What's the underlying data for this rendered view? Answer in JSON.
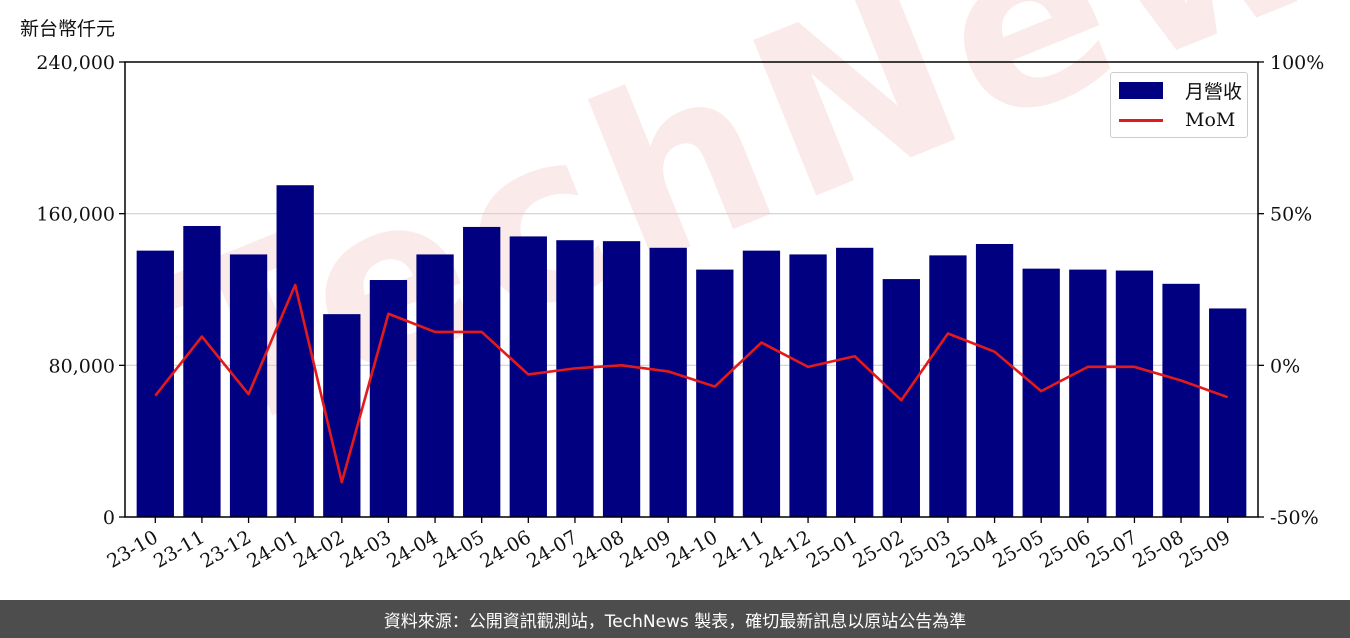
{
  "unit_label": "新台幣仟元",
  "footer_text": "資料來源：公開資訊觀測站，TechNews 製表，確切最新訊息以原站公告為準",
  "watermark_text": "TechNews",
  "colors": {
    "bar": "#000080",
    "line": "#e31a1c",
    "grid": "#d0d0d0",
    "footer_bg": "#4d4d4d"
  },
  "chart_data": {
    "type": "bar",
    "categories": [
      "23-10",
      "23-11",
      "23-12",
      "24-01",
      "24-02",
      "24-03",
      "24-04",
      "24-05",
      "24-06",
      "24-07",
      "24-08",
      "24-09",
      "24-10",
      "24-11",
      "24-12",
      "25-01",
      "25-02",
      "25-03",
      "25-04",
      "25-05",
      "25-06",
      "25-07",
      "25-08",
      "25-09"
    ],
    "series": [
      {
        "name": "月營收",
        "axis": "left",
        "type": "bar",
        "values": [
          140500,
          153500,
          138500,
          175000,
          107000,
          125000,
          138500,
          153000,
          148000,
          146000,
          145500,
          142000,
          130500,
          140500,
          138500,
          142000,
          125500,
          138000,
          144000,
          131000,
          130500,
          130000,
          123000,
          110000
        ]
      },
      {
        "name": "MoM",
        "axis": "right",
        "type": "line",
        "values": [
          -10,
          9.5,
          -9.5,
          26.5,
          -38.5,
          17,
          11,
          11,
          -3,
          -1,
          0,
          -2,
          -7,
          7.5,
          -0.5,
          3,
          -11.5,
          10.5,
          4.5,
          -8.5,
          -0.5,
          -0.5,
          -5,
          -10.5
        ]
      }
    ],
    "y_left": {
      "lim": [
        0,
        240000
      ],
      "ticks": [
        "0",
        "80,000",
        "160,000",
        "240,000"
      ],
      "tick_values": [
        0,
        80000,
        160000,
        240000
      ]
    },
    "y_right": {
      "lim": [
        -50,
        100
      ],
      "ticks": [
        "-50%",
        "0%",
        "50%",
        "100%"
      ],
      "tick_values": [
        -50,
        0,
        50,
        100
      ]
    },
    "grid": "horizontal",
    "legend": "top-right"
  }
}
